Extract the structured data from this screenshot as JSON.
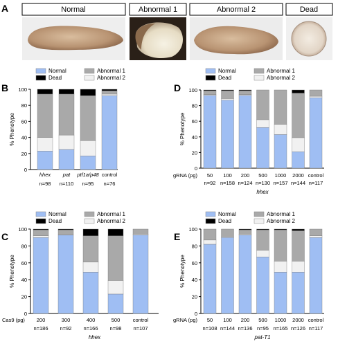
{
  "panel_a": {
    "label": "A",
    "headers": [
      "Normal",
      "Abnormal 1",
      "Abnormal 2",
      "Dead"
    ]
  },
  "legend": {
    "normal": "Normal",
    "dead": "Dead",
    "abnormal1": "Abnormal 1",
    "abnormal2": "Abnormal 2"
  },
  "colors": {
    "normal": "#9fbef3",
    "abnormal2": "#f1f1f1",
    "abnormal1": "#a9a9a9",
    "dead": "#000000"
  },
  "chart_data": [
    {
      "panel": "B",
      "type": "bar",
      "stacked": true,
      "ylabel": "% Phenotype",
      "ylim": [
        0,
        100
      ],
      "yticks": [
        0,
        20,
        40,
        60,
        80,
        100
      ],
      "categories": [
        "hhex",
        "pat",
        "ptf1a/p48",
        "control"
      ],
      "italic_categories": [
        true,
        true,
        true,
        false
      ],
      "counts": [
        "n=98",
        "n=110",
        "n=95",
        "n=76"
      ],
      "series": [
        {
          "name": "Normal",
          "values": [
            23,
            25,
            17,
            92
          ]
        },
        {
          "name": "Abnormal 2",
          "values": [
            17,
            18,
            19,
            2
          ]
        },
        {
          "name": "Abnormal 1",
          "values": [
            54,
            51,
            56,
            4
          ]
        },
        {
          "name": "Dead",
          "values": [
            6,
            6,
            8,
            2
          ]
        }
      ]
    },
    {
      "panel": "D",
      "type": "bar",
      "stacked": true,
      "ylabel": "% Phenotype",
      "ylim": [
        0,
        100
      ],
      "yticks": [
        0,
        20,
        40,
        60,
        80,
        100
      ],
      "xprefix": "gRNA (pg)",
      "categories": [
        "50",
        "100",
        "200",
        "500",
        "1000",
        "2000",
        "control"
      ],
      "counts": [
        "n=92",
        "n=158",
        "n=124",
        "n=130",
        "n=157",
        "n=144",
        "n=117"
      ],
      "xlabel": "hhex",
      "series": [
        {
          "name": "Normal",
          "values": [
            93,
            87,
            93,
            52,
            43,
            21,
            90
          ]
        },
        {
          "name": "Abnormal 2",
          "values": [
            1,
            2,
            1,
            10,
            13,
            18,
            2
          ]
        },
        {
          "name": "Abnormal 1",
          "values": [
            5,
            10,
            5,
            38,
            44,
            57,
            8
          ]
        },
        {
          "name": "Dead",
          "values": [
            1,
            1,
            1,
            0,
            0,
            4,
            0
          ]
        }
      ]
    },
    {
      "panel": "C",
      "type": "bar",
      "stacked": true,
      "ylabel": "% Phenotype",
      "ylim": [
        0,
        100
      ],
      "yticks": [
        0,
        20,
        40,
        60,
        80,
        100
      ],
      "xprefix": "Cas9 (pg)",
      "categories": [
        "200",
        "300",
        "400",
        "500",
        "control"
      ],
      "counts": [
        "n=186",
        "n=92",
        "n=166",
        "n=98",
        "n=107"
      ],
      "xlabel": "hhex",
      "series": [
        {
          "name": "Normal",
          "values": [
            90,
            93,
            49,
            23,
            93
          ]
        },
        {
          "name": "Abnormal 2",
          "values": [
            2,
            0,
            12,
            16,
            1
          ]
        },
        {
          "name": "Abnormal 1",
          "values": [
            7,
            6,
            31,
            53,
            6
          ]
        },
        {
          "name": "Dead",
          "values": [
            1,
            1,
            8,
            8,
            0
          ]
        }
      ]
    },
    {
      "panel": "E",
      "type": "bar",
      "stacked": true,
      "ylabel": "% Phenotype",
      "ylim": [
        0,
        100
      ],
      "yticks": [
        0,
        20,
        40,
        60,
        80,
        100
      ],
      "xprefix": "gRNA (pg)",
      "categories": [
        "50",
        "100",
        "200",
        "500",
        "1000",
        "2000",
        "control"
      ],
      "counts": [
        "n=108",
        "n=144",
        "n=136",
        "n=95",
        "n=165",
        "n=126",
        "n=117"
      ],
      "xlabel": "pat-T1",
      "series": [
        {
          "name": "Normal",
          "values": [
            82,
            90,
            93,
            67,
            49,
            49,
            90
          ]
        },
        {
          "name": "Abnormal 2",
          "values": [
            5,
            1,
            1,
            8,
            13,
            13,
            2
          ]
        },
        {
          "name": "Abnormal 1",
          "values": [
            13,
            9,
            5,
            24,
            37,
            36,
            8
          ]
        },
        {
          "name": "Dead",
          "values": [
            0,
            0,
            1,
            1,
            1,
            2,
            0
          ]
        }
      ]
    }
  ]
}
